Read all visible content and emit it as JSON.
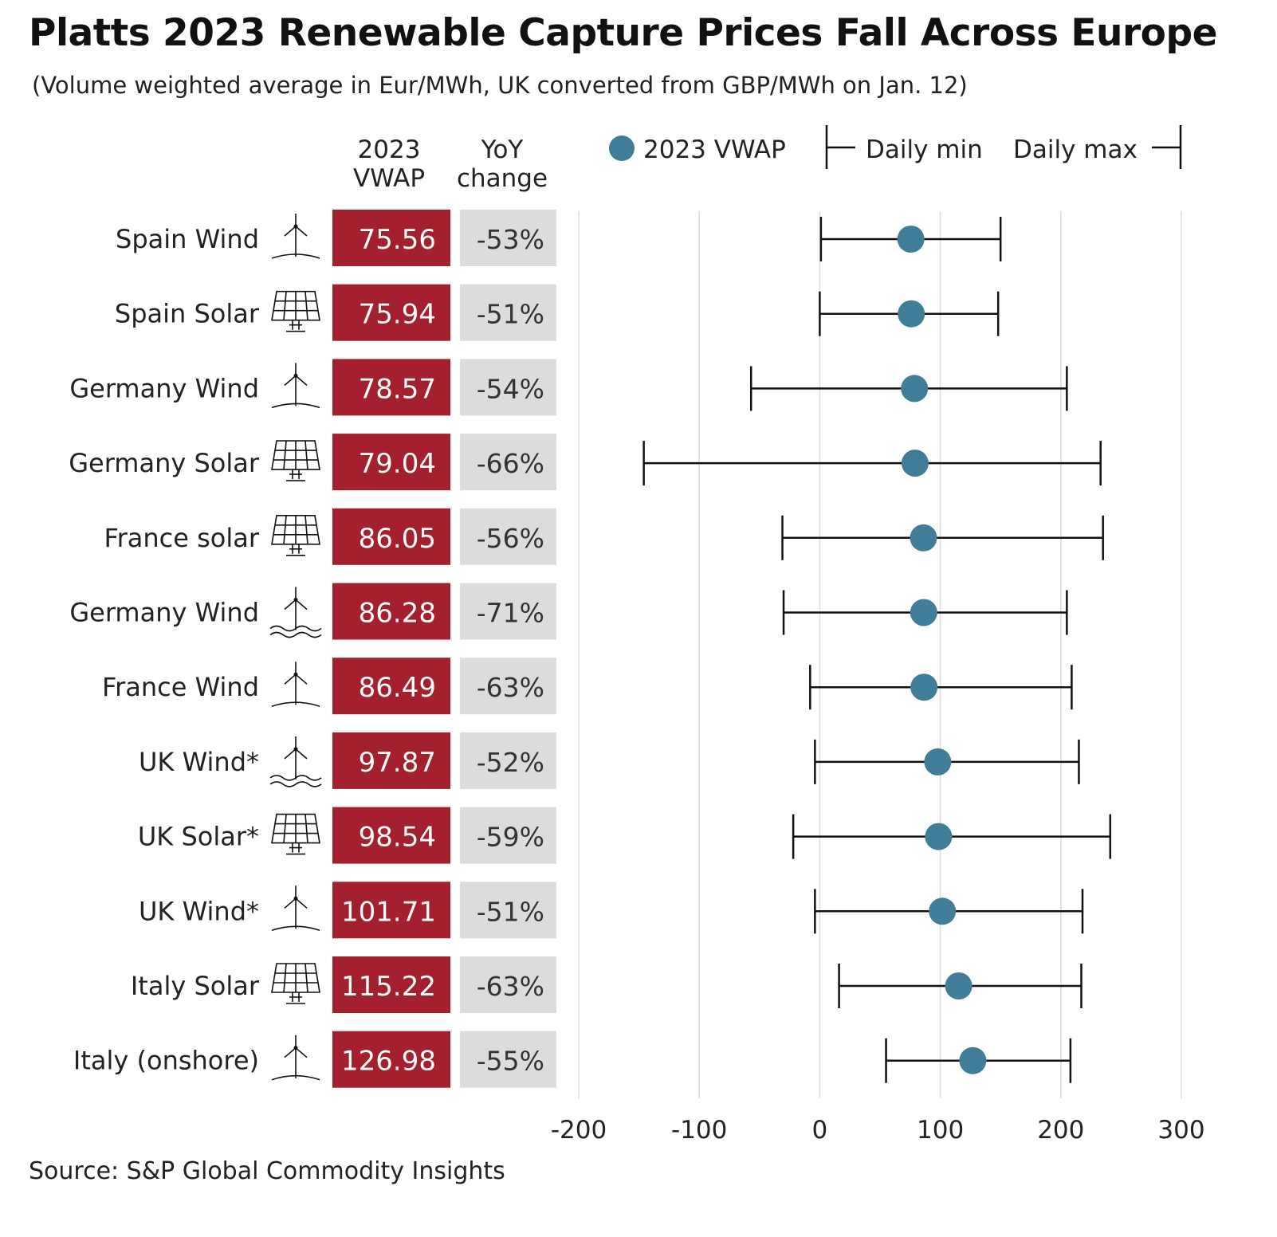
{
  "title": "Platts 2023 Renewable Capture Prices Fall Across Europe",
  "subtitle": "(Volume weighted average in Eur/MWh, UK converted from GBP/MWh on Jan. 12)",
  "source": "Source: S&P Global Commodity Insights",
  "columns": {
    "vwap": [
      "2023",
      "VWAP"
    ],
    "yoy": [
      "YoY",
      "change"
    ]
  },
  "colors": {
    "vwap_box": "#a4202f",
    "yoy_box": "#dcdcdc",
    "dot": "#3f7d98",
    "grid": "#dddddd"
  },
  "chart_data": {
    "type": "dot-range",
    "legend": {
      "dot": "2023 VWAP",
      "min": "Daily min",
      "max": "Daily max",
      "placement": "top-right"
    },
    "xlim": [
      -200,
      300
    ],
    "xticks": [
      -200,
      -100,
      0,
      100,
      200,
      300
    ],
    "grid": true,
    "rows": [
      {
        "label": "Spain Wind",
        "icon": "wind-turbine-icon",
        "vwap": 75.56,
        "vwap_label": "75.56",
        "yoy": "-53%",
        "min": 1,
        "max": 150
      },
      {
        "label": "Spain Solar",
        "icon": "solar-panel-icon",
        "vwap": 75.94,
        "vwap_label": "75.94",
        "yoy": "-51%",
        "min": 0,
        "max": 148
      },
      {
        "label": "Germany Wind",
        "icon": "wind-turbine-icon",
        "vwap": 78.57,
        "vwap_label": "78.57",
        "yoy": "-54%",
        "min": -57,
        "max": 205
      },
      {
        "label": "Germany Solar",
        "icon": "solar-panel-icon",
        "vwap": 79.04,
        "vwap_label": "79.04",
        "yoy": "-66%",
        "min": -146,
        "max": 233
      },
      {
        "label": "France solar",
        "icon": "solar-panel-icon",
        "vwap": 86.05,
        "vwap_label": "86.05",
        "yoy": "-56%",
        "min": -31,
        "max": 235
      },
      {
        "label": "Germany Wind",
        "icon": "offshore-wind-turbine-icon",
        "vwap": 86.28,
        "vwap_label": "86.28",
        "yoy": "-71%",
        "min": -30,
        "max": 205
      },
      {
        "label": "France Wind",
        "icon": "wind-turbine-icon",
        "vwap": 86.49,
        "vwap_label": "86.49",
        "yoy": "-63%",
        "min": -8,
        "max": 209
      },
      {
        "label": "UK Wind*",
        "icon": "offshore-wind-turbine-icon",
        "vwap": 97.87,
        "vwap_label": "97.87",
        "yoy": "-52%",
        "min": -4,
        "max": 215
      },
      {
        "label": "UK Solar*",
        "icon": "solar-panel-icon",
        "vwap": 98.54,
        "vwap_label": "98.54",
        "yoy": "-59%",
        "min": -22,
        "max": 241
      },
      {
        "label": "UK Wind*",
        "icon": "wind-turbine-icon",
        "vwap": 101.71,
        "vwap_label": "101.71",
        "yoy": "-51%",
        "min": -4,
        "max": 218
      },
      {
        "label": "Italy Solar",
        "icon": "solar-panel-icon",
        "vwap": 115.22,
        "vwap_label": "115.22",
        "yoy": "-63%",
        "min": 16,
        "max": 217
      },
      {
        "label": "Italy (onshore)",
        "icon": "wind-turbine-icon",
        "vwap": 126.98,
        "vwap_label": "126.98",
        "yoy": "-55%",
        "min": 55,
        "max": 208
      }
    ]
  }
}
